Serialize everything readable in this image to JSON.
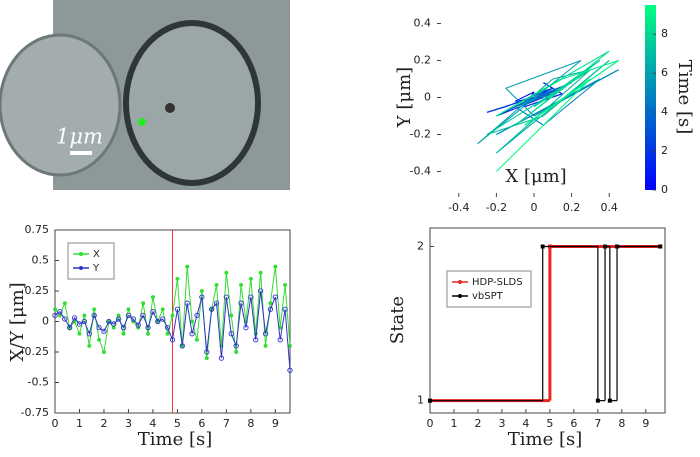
{
  "chart_data": [
    {
      "type": "image",
      "scale_label": "1μm"
    },
    {
      "type": "trajectory",
      "xlabel": "X [μm]",
      "ylabel": "Y [μm]",
      "x": [
        0.1,
        0.05,
        0.15,
        -0.05,
        0.0,
        -0.1,
        0.05,
        -0.2,
        0.1,
        -0.15,
        -0.25,
        0.0,
        -0.05,
        0.05,
        -0.1,
        0.1,
        0.0,
        -0.05,
        0.15,
        -0.1,
        0.2,
        0.0,
        0.1,
        -0.1,
        0.05,
        0.35,
        -0.2,
        0.45,
        0.0,
        -0.15,
        0.25,
        -0.3,
        0.1,
        0.3,
        -0.2,
        0.4,
        0.05,
        -0.25,
        0.3,
        0.0,
        0.35,
        -0.1,
        0.4,
        -0.2,
        0.15,
        0.45,
        -0.05,
        0.3,
        -0.2
      ],
      "y": [
        0.05,
        0.08,
        0.02,
        -0.05,
        0.03,
        -0.02,
        0.0,
        -0.1,
        0.05,
        -0.05,
        -0.08,
        0.0,
        -0.02,
        0.02,
        -0.05,
        0.05,
        0.02,
        -0.03,
        0.05,
        -0.05,
        0.08,
        0.0,
        0.02,
        -0.05,
        -0.15,
        0.1,
        -0.2,
        0.15,
        -0.1,
        0.05,
        0.2,
        -0.25,
        0.1,
        0.15,
        -0.3,
        0.2,
        -0.1,
        -0.2,
        0.15,
        -0.05,
        0.2,
        -0.15,
        0.25,
        -0.1,
        0.1,
        0.2,
        -0.15,
        0.1,
        -0.4
      ],
      "time": [
        0,
        0.2,
        0.4,
        0.6,
        0.8,
        1,
        1.2,
        1.4,
        1.6,
        1.8,
        2,
        2.2,
        2.4,
        2.6,
        2.8,
        3,
        3.2,
        3.4,
        3.6,
        3.8,
        4,
        4.2,
        4.4,
        4.6,
        4.8,
        5,
        5.2,
        5.4,
        5.6,
        5.8,
        6,
        6.2,
        6.4,
        6.6,
        6.8,
        7,
        7.2,
        7.4,
        7.6,
        7.8,
        8,
        8.2,
        8.4,
        8.6,
        8.8,
        9,
        9.2,
        9.4,
        9.6
      ],
      "xlim": [
        -0.5,
        0.5
      ],
      "ylim": [
        -0.5,
        0.5
      ],
      "xticks": [
        -0.4,
        -0.2,
        0,
        0.2,
        0.4
      ],
      "yticks": [
        -0.4,
        -0.2,
        0,
        0.2,
        0.4
      ],
      "colorbar": {
        "label": "Time [s]",
        "lim": [
          0,
          9.5
        ],
        "ticks": [
          0,
          2,
          4,
          6,
          8
        ],
        "cmap": "winter"
      }
    },
    {
      "type": "line",
      "xlabel": "Time [s]",
      "ylabel": "X/Y [μm]",
      "x": [
        0,
        0.2,
        0.4,
        0.6,
        0.8,
        1,
        1.2,
        1.4,
        1.6,
        1.8,
        2,
        2.2,
        2.4,
        2.6,
        2.8,
        3,
        3.2,
        3.4,
        3.6,
        3.8,
        4,
        4.2,
        4.4,
        4.6,
        4.8,
        5,
        5.2,
        5.4,
        5.6,
        5.8,
        6,
        6.2,
        6.4,
        6.6,
        6.8,
        7,
        7.2,
        7.4,
        7.6,
        7.8,
        8,
        8.2,
        8.4,
        8.6,
        8.8,
        9,
        9.2,
        9.4,
        9.6
      ],
      "series": [
        {
          "name": "X",
          "color": "#33dd33",
          "marker": "dot",
          "values": [
            0.1,
            0.05,
            0.15,
            -0.05,
            0.0,
            -0.1,
            0.05,
            -0.2,
            0.1,
            -0.15,
            -0.25,
            0.0,
            -0.05,
            0.05,
            -0.1,
            0.1,
            0.0,
            -0.05,
            0.15,
            -0.1,
            0.2,
            0.0,
            0.1,
            -0.1,
            0.05,
            0.35,
            -0.2,
            0.45,
            0.0,
            -0.15,
            0.25,
            -0.3,
            0.1,
            0.3,
            -0.2,
            0.4,
            0.05,
            -0.25,
            0.3,
            0.0,
            0.35,
            -0.1,
            0.4,
            -0.2,
            0.15,
            0.45,
            -0.05,
            0.3,
            -0.2
          ]
        },
        {
          "name": "Y",
          "color": "#3333cc",
          "marker": "circle",
          "values": [
            0.05,
            0.08,
            0.02,
            -0.05,
            0.03,
            -0.02,
            0.0,
            -0.1,
            0.05,
            -0.05,
            -0.08,
            0.0,
            -0.02,
            0.02,
            -0.05,
            0.05,
            0.02,
            -0.03,
            0.05,
            -0.05,
            0.08,
            0.0,
            0.02,
            -0.05,
            -0.15,
            0.1,
            -0.2,
            0.15,
            -0.1,
            0.05,
            0.2,
            -0.25,
            0.1,
            0.15,
            -0.3,
            0.2,
            -0.1,
            -0.2,
            0.15,
            -0.05,
            0.2,
            -0.15,
            0.25,
            -0.1,
            0.1,
            0.2,
            -0.15,
            0.1,
            -0.4
          ]
        }
      ],
      "xlim": [
        0,
        9.6
      ],
      "ylim": [
        -0.75,
        0.75
      ],
      "xticks": [
        0,
        1,
        2,
        3,
        4,
        5,
        6,
        7,
        8,
        9
      ],
      "yticks": [
        -0.75,
        -0.5,
        -0.25,
        0,
        0.25,
        0.5,
        0.75
      ],
      "vline": {
        "x": 4.8,
        "color": "#ff3333"
      },
      "legend": "upper left"
    },
    {
      "type": "step",
      "xlabel": "Time [s]",
      "ylabel": "State",
      "series": [
        {
          "name": "HDP-SLDS",
          "color": "#ee2222",
          "x": [
            0,
            5,
            9.6
          ],
          "values": [
            1,
            2,
            2
          ]
        },
        {
          "name": "vbSPT",
          "color": "#000000",
          "x": [
            0,
            4.7,
            7,
            7.3,
            7.5,
            7.8,
            9.6
          ],
          "values": [
            1,
            2,
            1,
            2,
            1,
            2,
            2
          ]
        }
      ],
      "xlim": [
        0,
        9.8
      ],
      "ylim": [
        0.92,
        2.12
      ],
      "xticks": [
        0,
        1,
        2,
        3,
        4,
        5,
        6,
        7,
        8,
        9
      ],
      "yticks": [
        1,
        2
      ],
      "legend": "upper left"
    }
  ]
}
